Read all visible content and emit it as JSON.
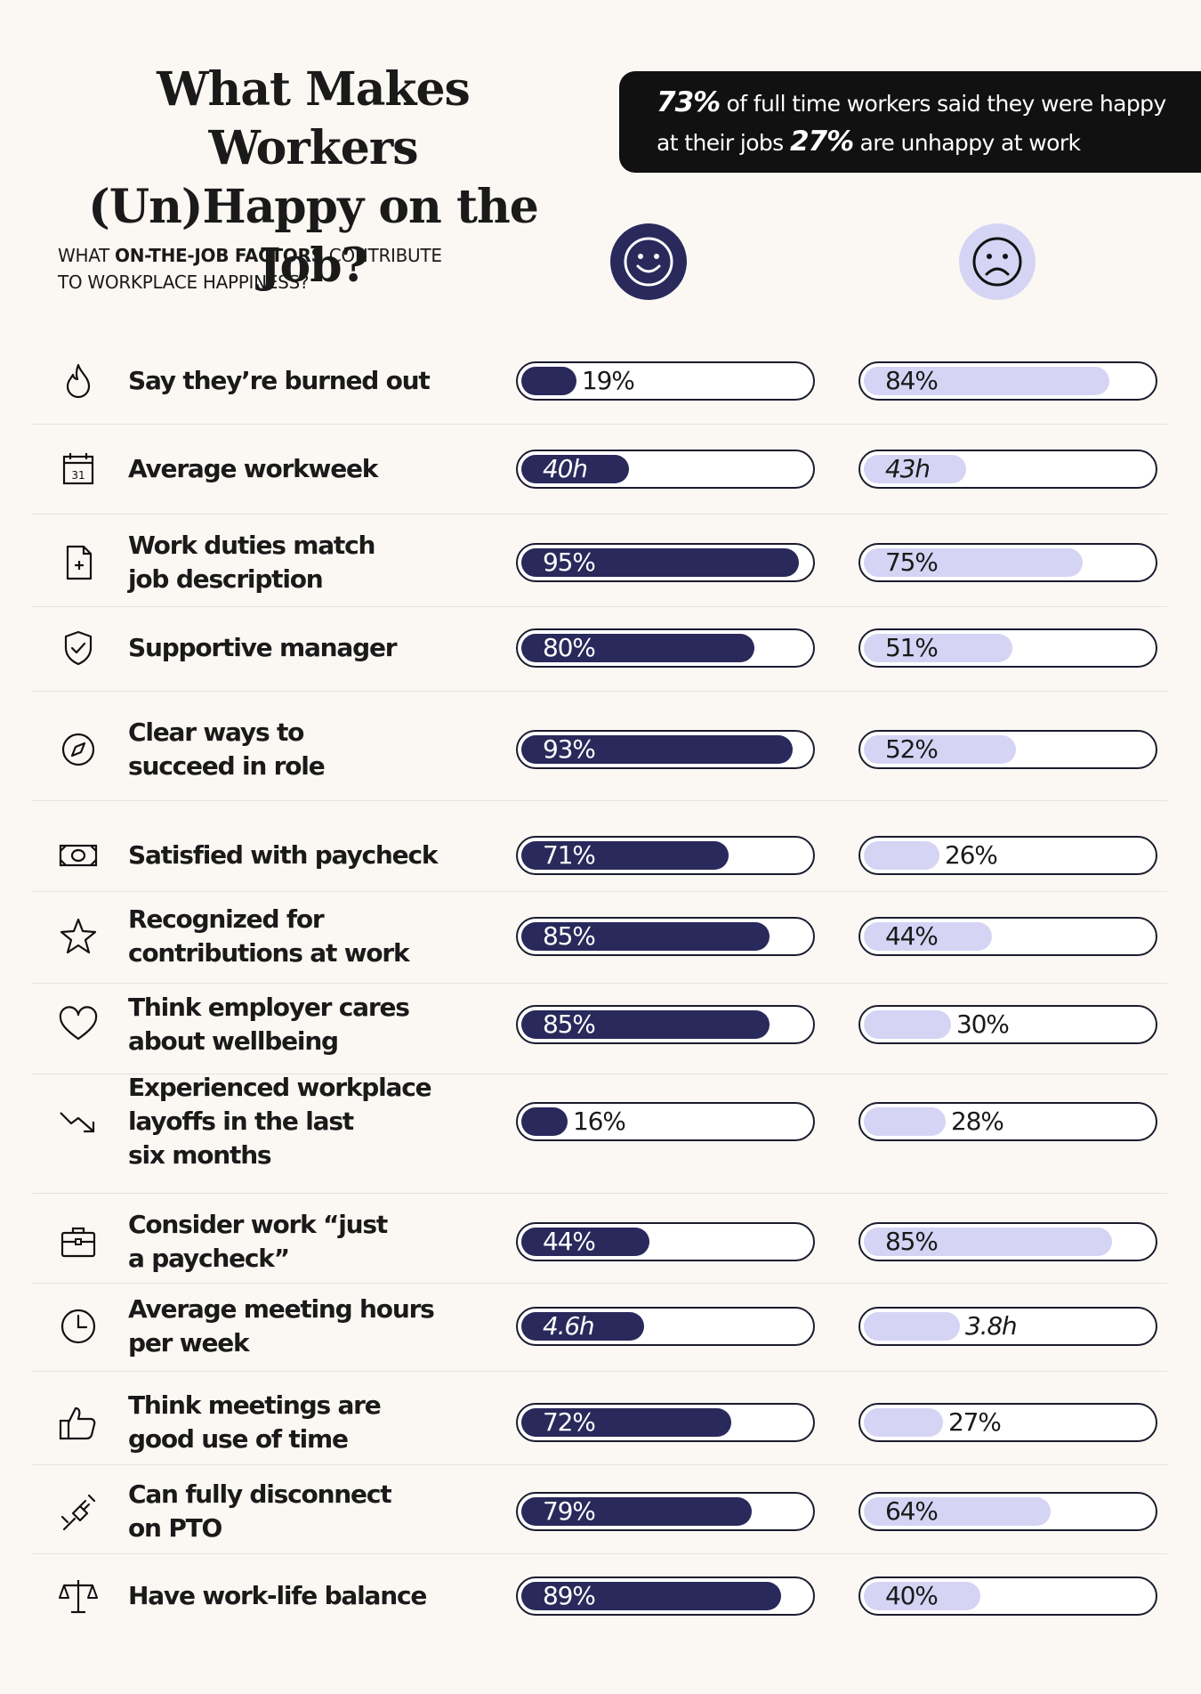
{
  "title": {
    "line1": "What Makes Workers",
    "line2": "(Un)Happy on the Job?"
  },
  "callout": {
    "happy_pct": "73%",
    "text1": " of full time workers said they were happy",
    "text2": "at their jobs ",
    "unhappy_pct": "27%",
    "text3": " are unhappy at work"
  },
  "subhead": {
    "pre": "WHAT ",
    "bold": "ON-THE-JOB FACTORS",
    "post": " CONTRIBUTE",
    "line2": "TO WORKPLACE HAPPINESS?"
  },
  "faces": {
    "happy_icon": "smiley-face-icon",
    "unhappy_icon": "frowning-face-icon"
  },
  "colors": {
    "happy_bar": "#29295c",
    "unhappy_bar": "#d6d4f4",
    "callout_bg": "#111111",
    "background": "#fbf8f4"
  },
  "chart_data": {
    "type": "bar",
    "series": [
      {
        "name": "happy",
        "icon": "smiley-face-icon"
      },
      {
        "name": "unhappy",
        "icon": "frowning-face-icon"
      }
    ],
    "rows": [
      {
        "icon": "flame-icon",
        "label": "Say they’re burned out",
        "happy": "19%",
        "unhappy": "84%",
        "happy_value": 0.19,
        "unhappy_value": 0.84
      },
      {
        "icon": "calendar-icon",
        "label": "Average workweek",
        "happy": "40h",
        "unhappy": "43h",
        "happy_value": 40,
        "unhappy_value": 43
      },
      {
        "icon": "document-icon",
        "label": "Work duties match job description",
        "happy": "95%",
        "unhappy": "75%",
        "happy_value": 0.95,
        "unhappy_value": 0.75
      },
      {
        "icon": "shield-check-icon",
        "label": "Supportive manager",
        "happy": "80%",
        "unhappy": "51%",
        "happy_value": 0.8,
        "unhappy_value": 0.51
      },
      {
        "icon": "compass-icon",
        "label": "Clear ways to succeed in role",
        "happy": "93%",
        "unhappy": "52%",
        "happy_value": 0.93,
        "unhappy_value": 0.52
      },
      {
        "icon": "money-icon",
        "label": "Satisfied with paycheck",
        "happy": "71%",
        "unhappy": "26%",
        "happy_value": 0.71,
        "unhappy_value": 0.26
      },
      {
        "icon": "star-icon",
        "label": "Recognized for contributions at work",
        "happy": "85%",
        "unhappy": "44%",
        "happy_value": 0.85,
        "unhappy_value": 0.44
      },
      {
        "icon": "heart-icon",
        "label": "Think employer cares about wellbeing",
        "happy": "85%",
        "unhappy": "30%",
        "happy_value": 0.85,
        "unhappy_value": 0.3
      },
      {
        "icon": "trend-down-icon",
        "label": "Experienced workplace layoffs in the last six months",
        "happy": "16%",
        "unhappy": "28%",
        "happy_value": 0.16,
        "unhappy_value": 0.28
      },
      {
        "icon": "briefcase-icon",
        "label": "Consider work “just a paycheck”",
        "happy": "44%",
        "unhappy": "85%",
        "happy_value": 0.44,
        "unhappy_value": 0.85
      },
      {
        "icon": "clock-icon",
        "label": "Average meeting hours per week",
        "happy": "4.6h",
        "unhappy": "3.8h",
        "happy_value": 4.6,
        "unhappy_value": 3.8
      },
      {
        "icon": "thumbs-up-icon",
        "label": "Think meetings are good use of time",
        "happy": "72%",
        "unhappy": "27%",
        "happy_value": 0.72,
        "unhappy_value": 0.27
      },
      {
        "icon": "unplug-icon",
        "label": "Can fully disconnect on PTO",
        "happy": "79%",
        "unhappy": "64%",
        "happy_value": 0.79,
        "unhappy_value": 0.64
      },
      {
        "icon": "scale-icon",
        "label": "Have work-life balance",
        "happy": "89%",
        "unhappy": "40%",
        "happy_value": 0.89,
        "unhappy_value": 0.4
      }
    ]
  }
}
